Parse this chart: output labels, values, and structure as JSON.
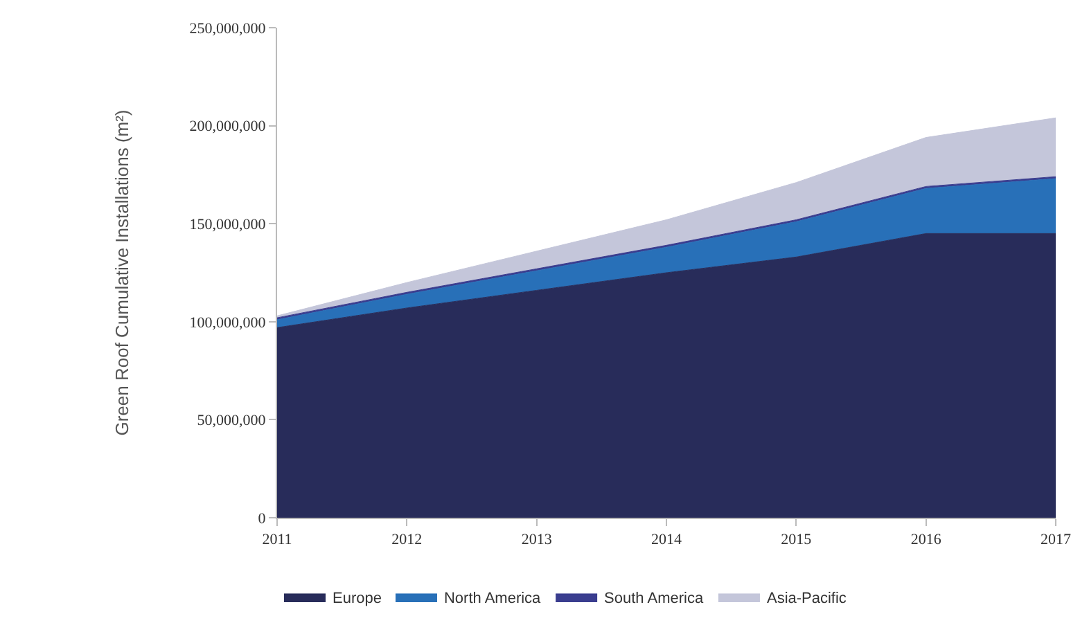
{
  "chart_data": {
    "type": "area",
    "stacked": true,
    "ylabel": "Green Roof Cumulative Installations (m²)",
    "x": [
      2011,
      2012,
      2013,
      2014,
      2015,
      2016,
      2017
    ],
    "xlim": [
      2011,
      2017
    ],
    "xticks": [
      2011,
      2012,
      2013,
      2014,
      2015,
      2016,
      2017
    ],
    "ylim": [
      0,
      250000000
    ],
    "yticks": [
      {
        "value": 0,
        "label": "0"
      },
      {
        "value": 50000000,
        "label": "50,000,000"
      },
      {
        "value": 100000000,
        "label": "100,000,000"
      },
      {
        "value": 150000000,
        "label": "150,000,000"
      },
      {
        "value": 200000000,
        "label": "200,000,000"
      },
      {
        "value": 250000000,
        "label": "250,000,000"
      }
    ],
    "legend": "bottom",
    "series": [
      {
        "name": "Europe",
        "color": "#282c5a",
        "values": [
          97000000,
          107000000,
          116000000,
          125000000,
          133000000,
          145000000,
          145000000
        ]
      },
      {
        "name": "North America",
        "color": "#2870b8",
        "values": [
          4000000,
          7000000,
          10000000,
          13000000,
          18000000,
          23000000,
          28000000
        ]
      },
      {
        "name": "South America",
        "color": "#3a3d8f",
        "values": [
          1000000,
          1000000,
          1000000,
          1000000,
          1000000,
          1000000,
          1000000
        ]
      },
      {
        "name": "Asia-Pacific",
        "color": "#c4c6da",
        "values": [
          1000000,
          5000000,
          9000000,
          13000000,
          19000000,
          25000000,
          30000000
        ]
      }
    ]
  }
}
